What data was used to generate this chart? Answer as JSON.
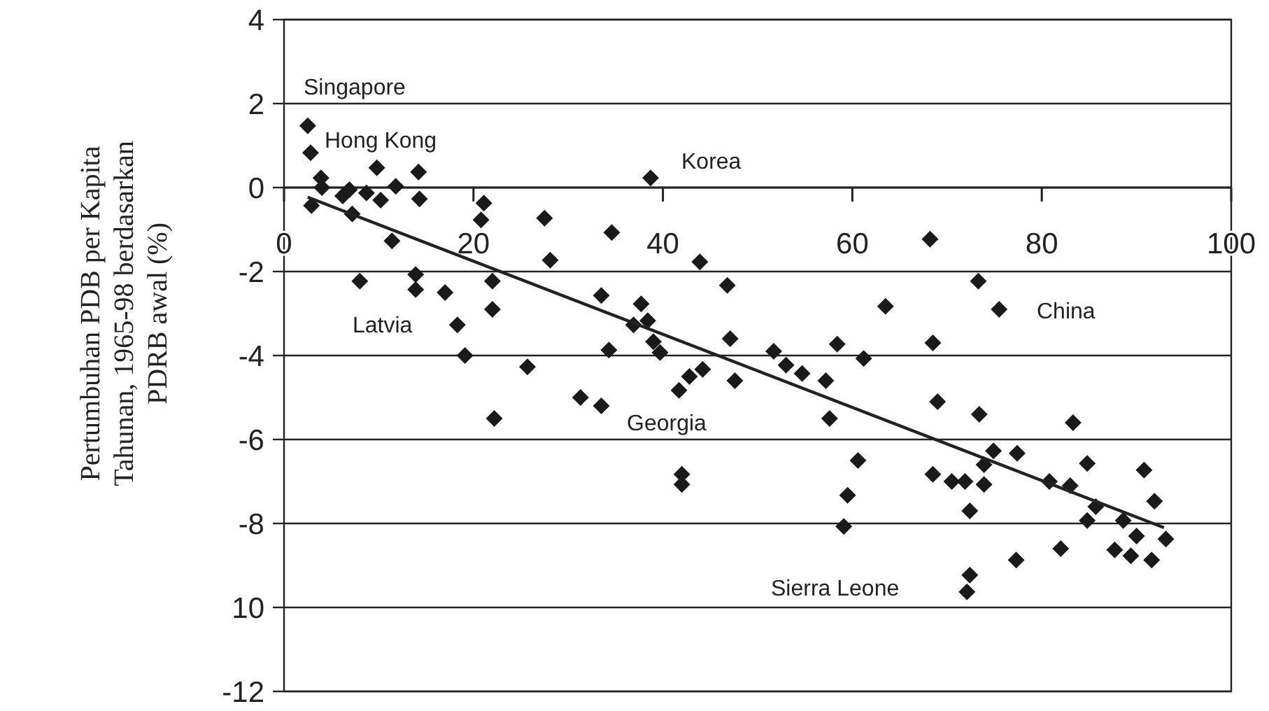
{
  "chart_data": {
    "type": "scatter",
    "ylabel": "Pertumbuhan PDB per Kapita\nTahunan, 1965-98 berdasarkan\nPDRB awal (%)",
    "xlim": [
      0,
      100
    ],
    "xticks": [
      0,
      20,
      40,
      60,
      80,
      100
    ],
    "ylim": [
      -12,
      4
    ],
    "yticks": [
      4,
      2,
      0,
      -2,
      -4,
      -6,
      -8,
      {
        "value": -10,
        "label": "10"
      },
      -12
    ],
    "grid": "y",
    "series": [
      {
        "color": "#1a1a1a",
        "marker": "diamond",
        "x": [
          2.5,
          2.8,
          3.9,
          2.9,
          4.0,
          6.2,
          6.9,
          7.2,
          8.7,
          10.2,
          9.8,
          11.8,
          11.4,
          14.2,
          14.3,
          8.0,
          13.9,
          13.9,
          17.0,
          18.3,
          21.1,
          20.8,
          22.0,
          22.0,
          27.5,
          28.1,
          34.6,
          33.5,
          37.7,
          38.7,
          38.4,
          36.9,
          43.9,
          46.8,
          47.1,
          19.1,
          22.2,
          25.7,
          31.3,
          33.5,
          34.3,
          39.0,
          39.7,
          41.7,
          42.8,
          44.2,
          47.6,
          42.0,
          42.0,
          51.7,
          53.0,
          54.7,
          57.2,
          58.4,
          61.2,
          57.6,
          60.6,
          59.5,
          59.1,
          68.5,
          69.0,
          68.5,
          70.5,
          71.9,
          73.9,
          72.4,
          73.4,
          74.9,
          77.4,
          73.9,
          72.4,
          72.1,
          77.3,
          80.8,
          83.0,
          83.3,
          84.8,
          85.7,
          84.8,
          82.0,
          88.6,
          90.0,
          87.7,
          89.4,
          90.8,
          91.9,
          93.1,
          91.6,
          68.2,
          73.3,
          63.5,
          75.5
        ],
        "values": [
          1.47,
          0.83,
          0.23,
          -0.43,
          0,
          -0.2,
          -0.05,
          -0.63,
          -0.13,
          -0.3,
          0.47,
          0.03,
          -1.27,
          0.37,
          -0.27,
          -2.23,
          -2.07,
          -2.43,
          -2.5,
          -3.27,
          -0.37,
          -0.77,
          -2.23,
          -2.9,
          -0.73,
          -1.73,
          -1.07,
          -2.57,
          -2.77,
          0.23,
          -3.17,
          -3.27,
          -1.77,
          -2.33,
          -3.6,
          -4.0,
          -5.5,
          -4.27,
          -5.0,
          -5.2,
          -3.87,
          -3.67,
          -3.93,
          -4.83,
          -4.5,
          -4.33,
          -4.6,
          -6.83,
          -7.07,
          -3.9,
          -4.23,
          -4.43,
          -4.6,
          -3.73,
          -4.07,
          -5.5,
          -6.5,
          -7.33,
          -8.07,
          -3.7,
          -5.1,
          -6.83,
          -7.0,
          -7.0,
          -7.07,
          -7.7,
          -5.4,
          -6.27,
          -6.33,
          -6.6,
          -9.23,
          -9.63,
          -8.87,
          -7.0,
          -7.1,
          -5.6,
          -6.57,
          -7.6,
          -7.93,
          -8.6,
          -7.93,
          -8.3,
          -8.63,
          -8.77,
          -6.73,
          -7.47,
          -8.37,
          -8.87,
          -1.23,
          -2.23,
          -2.83,
          -2.9
        ]
      },
      {
        "type": "line",
        "color": "#222222",
        "x": [
          2.5,
          92.9
        ],
        "values": [
          -0.23,
          -8.1
        ]
      }
    ],
    "annotations": [
      "Singapore",
      "Hong Kong",
      "Korea",
      "China",
      "Latvia",
      "Georgia",
      "Sierra Leone"
    ]
  }
}
